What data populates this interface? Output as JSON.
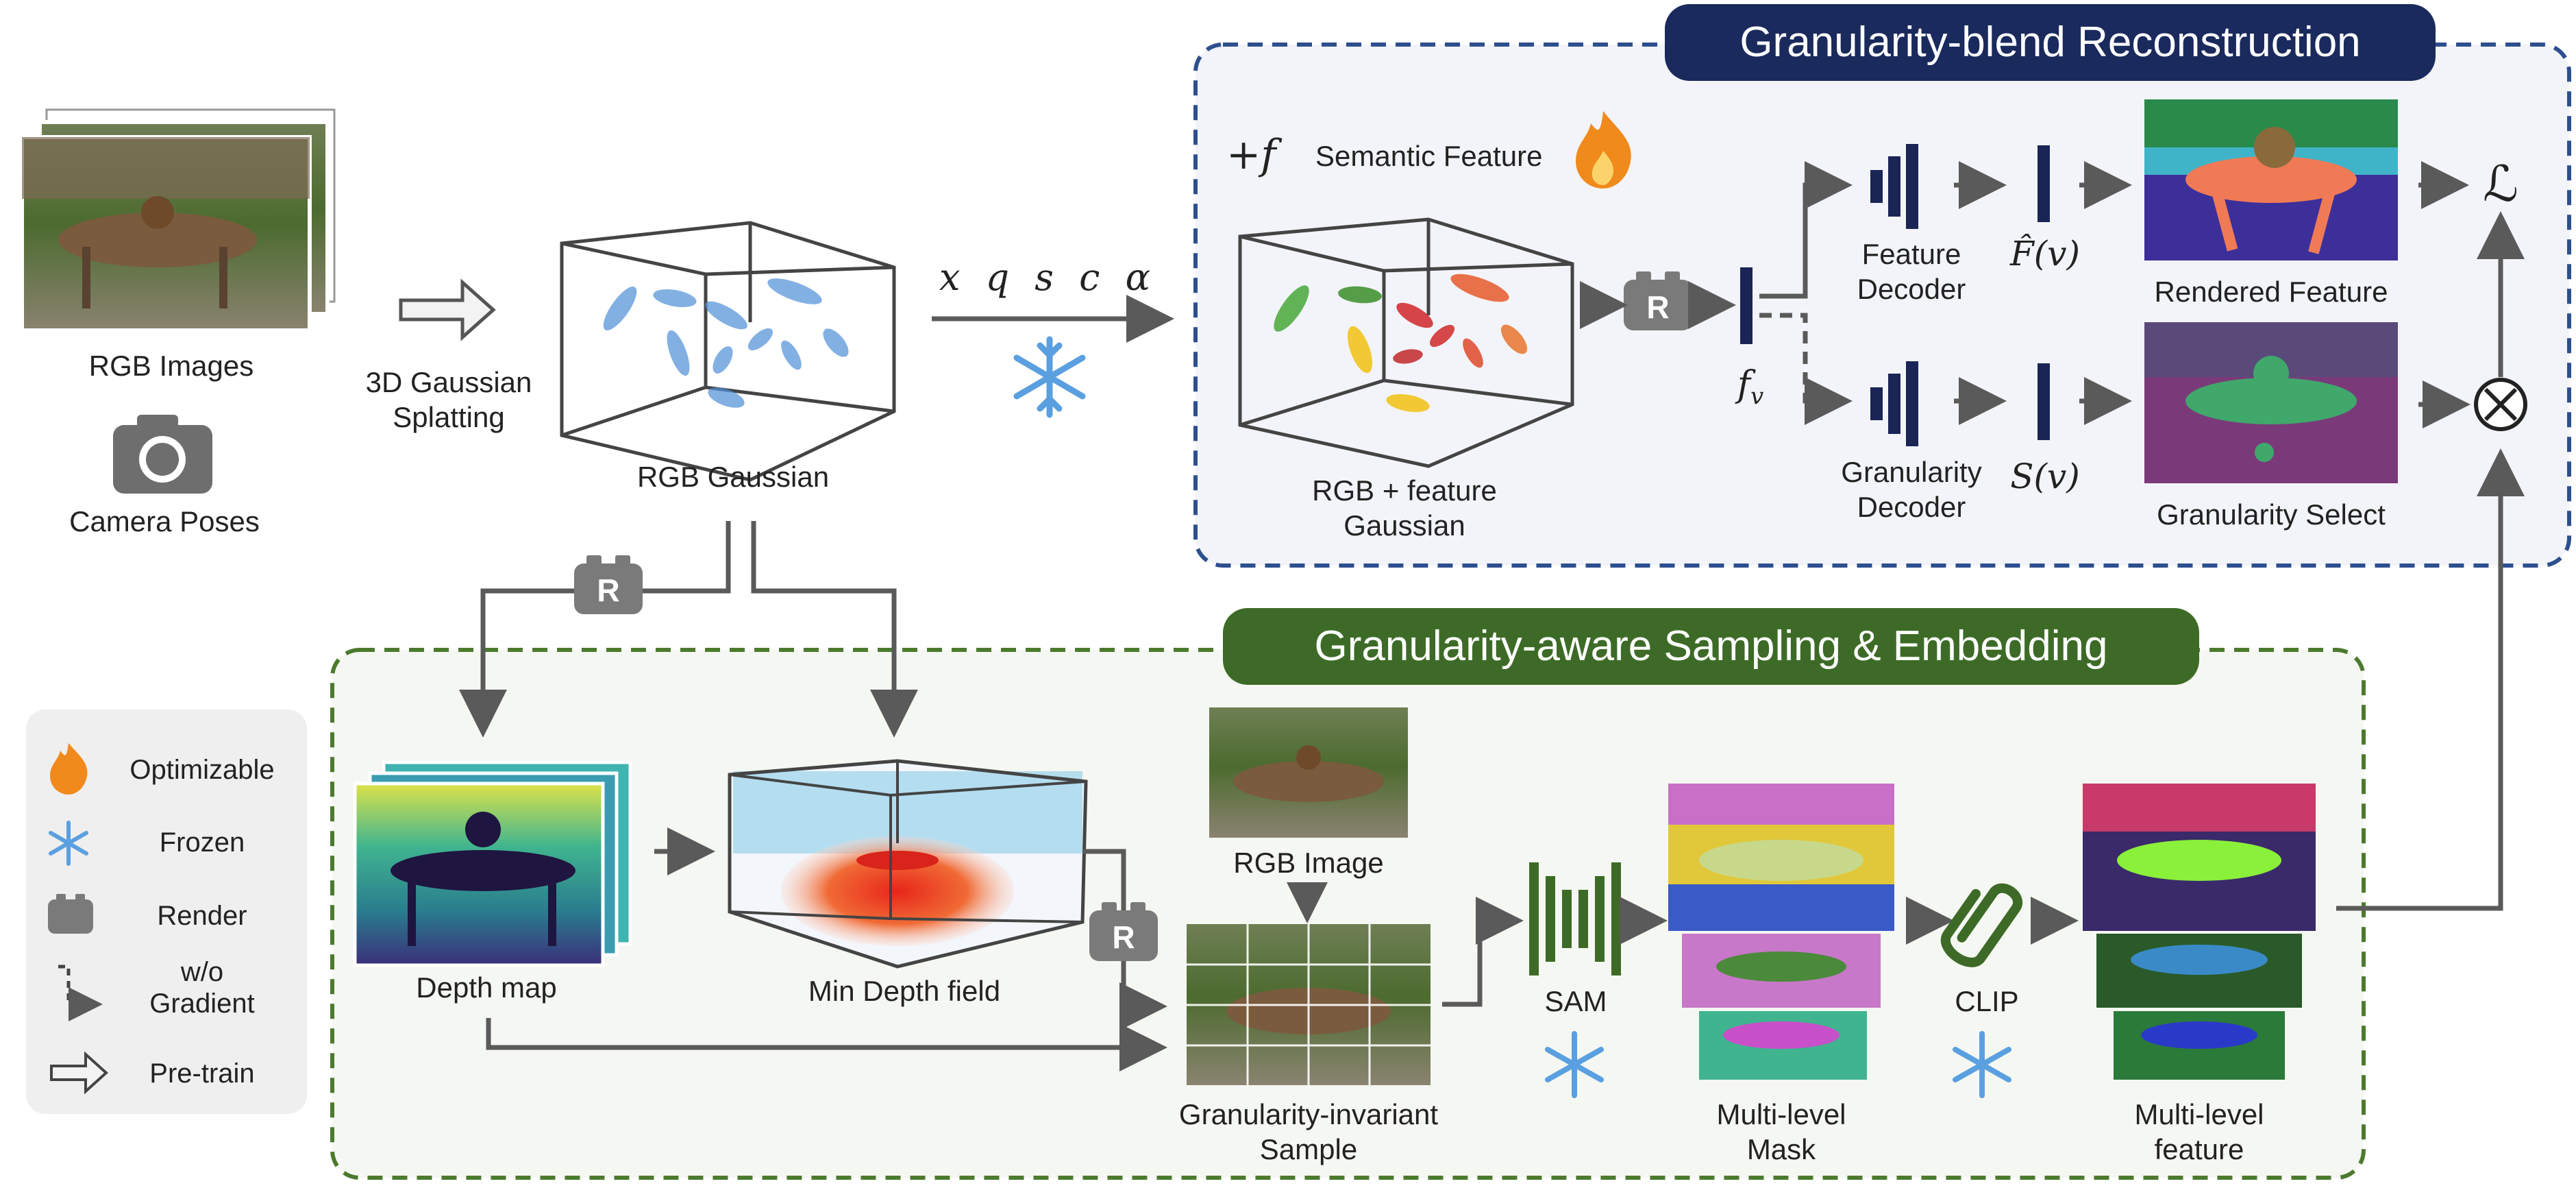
{
  "inputs": {
    "rgb_images": "RGB Images",
    "camera_poses": "Camera Poses",
    "pretrain_step": "3D Gaussian\nSplatting",
    "rgb_gaussian": "RGB Gaussian",
    "frozen_params": "x q s c α"
  },
  "top_panel": {
    "title": "Granularity-blend Reconstruction",
    "plus_f": "+f",
    "semantic_feature": "Semantic Feature",
    "feature_gaussian": "RGB + feature\nGaussian",
    "render_badge": "R",
    "fv": "f",
    "fv_sub": "v",
    "feature_decoder": "Feature\nDecoder",
    "granularity_decoder": "Granularity\nDecoder",
    "f_hat": "F̂(v)",
    "s_v": "S(v)",
    "rendered_feature": "Rendered Feature",
    "granularity_select": "Granularity Select",
    "loss": "ℒ",
    "multiply": "⊗"
  },
  "bottom_panel": {
    "title": "Granularity-aware Sampling & Embedding",
    "depth_map": "Depth map",
    "min_depth_field": "Min Depth field",
    "rgb_image": "RGB Image",
    "granularity_invariant_sample": "Granularity-invariant\nSample",
    "sam": "SAM",
    "multi_level_mask": "Multi-level\nMask",
    "clip": "CLIP",
    "multi_level_feature": "Multi-level\nfeature",
    "render_badge": "R"
  },
  "legend": {
    "items": [
      {
        "icon": "flame-icon",
        "label": "Optimizable"
      },
      {
        "icon": "snowflake-icon",
        "label": "Frozen"
      },
      {
        "icon": "render-icon",
        "label": "Render"
      },
      {
        "icon": "dashed-arrow-icon",
        "label": "w/o\nGradient"
      },
      {
        "icon": "hollow-arrow-icon",
        "label": "Pre-train"
      }
    ]
  },
  "colors": {
    "navy": "#1b2a5c",
    "decoder_navy": "#1a2555",
    "green": "#3d6b27",
    "gray_badge": "#7a7a7a",
    "arrow_gray": "#5a5a5a",
    "snow_blue": "#5aa0e0",
    "flame_orange": "#f08a1c"
  }
}
